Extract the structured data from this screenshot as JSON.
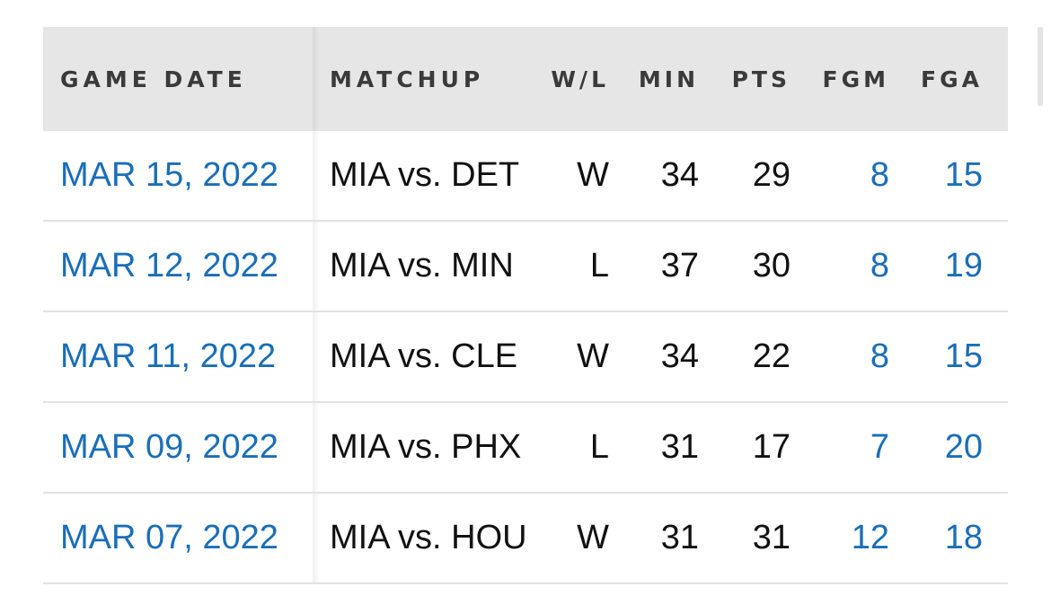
{
  "columns": {
    "game_date": "GAME DATE",
    "matchup": "MATCHUP",
    "wl": "W/L",
    "min": "MIN",
    "pts": "PTS",
    "fgm": "FGM",
    "fga": "FGA"
  },
  "rows": [
    {
      "date": "MAR 15, 2022",
      "matchup": "MIA vs. DET",
      "wl": "W",
      "min": "34",
      "pts": "29",
      "fgm": "8",
      "fga": "15"
    },
    {
      "date": "MAR 12, 2022",
      "matchup": "MIA vs. MIN",
      "wl": "L",
      "min": "37",
      "pts": "30",
      "fgm": "8",
      "fga": "19"
    },
    {
      "date": "MAR 11, 2022",
      "matchup": "MIA vs. CLE",
      "wl": "W",
      "min": "34",
      "pts": "22",
      "fgm": "8",
      "fga": "15"
    },
    {
      "date": "MAR 09, 2022",
      "matchup": "MIA vs. PHX",
      "wl": "L",
      "min": "31",
      "pts": "17",
      "fgm": "7",
      "fga": "20"
    },
    {
      "date": "MAR 07, 2022",
      "matchup": "MIA vs. HOU",
      "wl": "W",
      "min": "31",
      "pts": "31",
      "fgm": "12",
      "fga": "18"
    }
  ],
  "colors": {
    "link": "#1a6eb8",
    "header_bg": "#e6e6e6",
    "text": "#111111"
  }
}
